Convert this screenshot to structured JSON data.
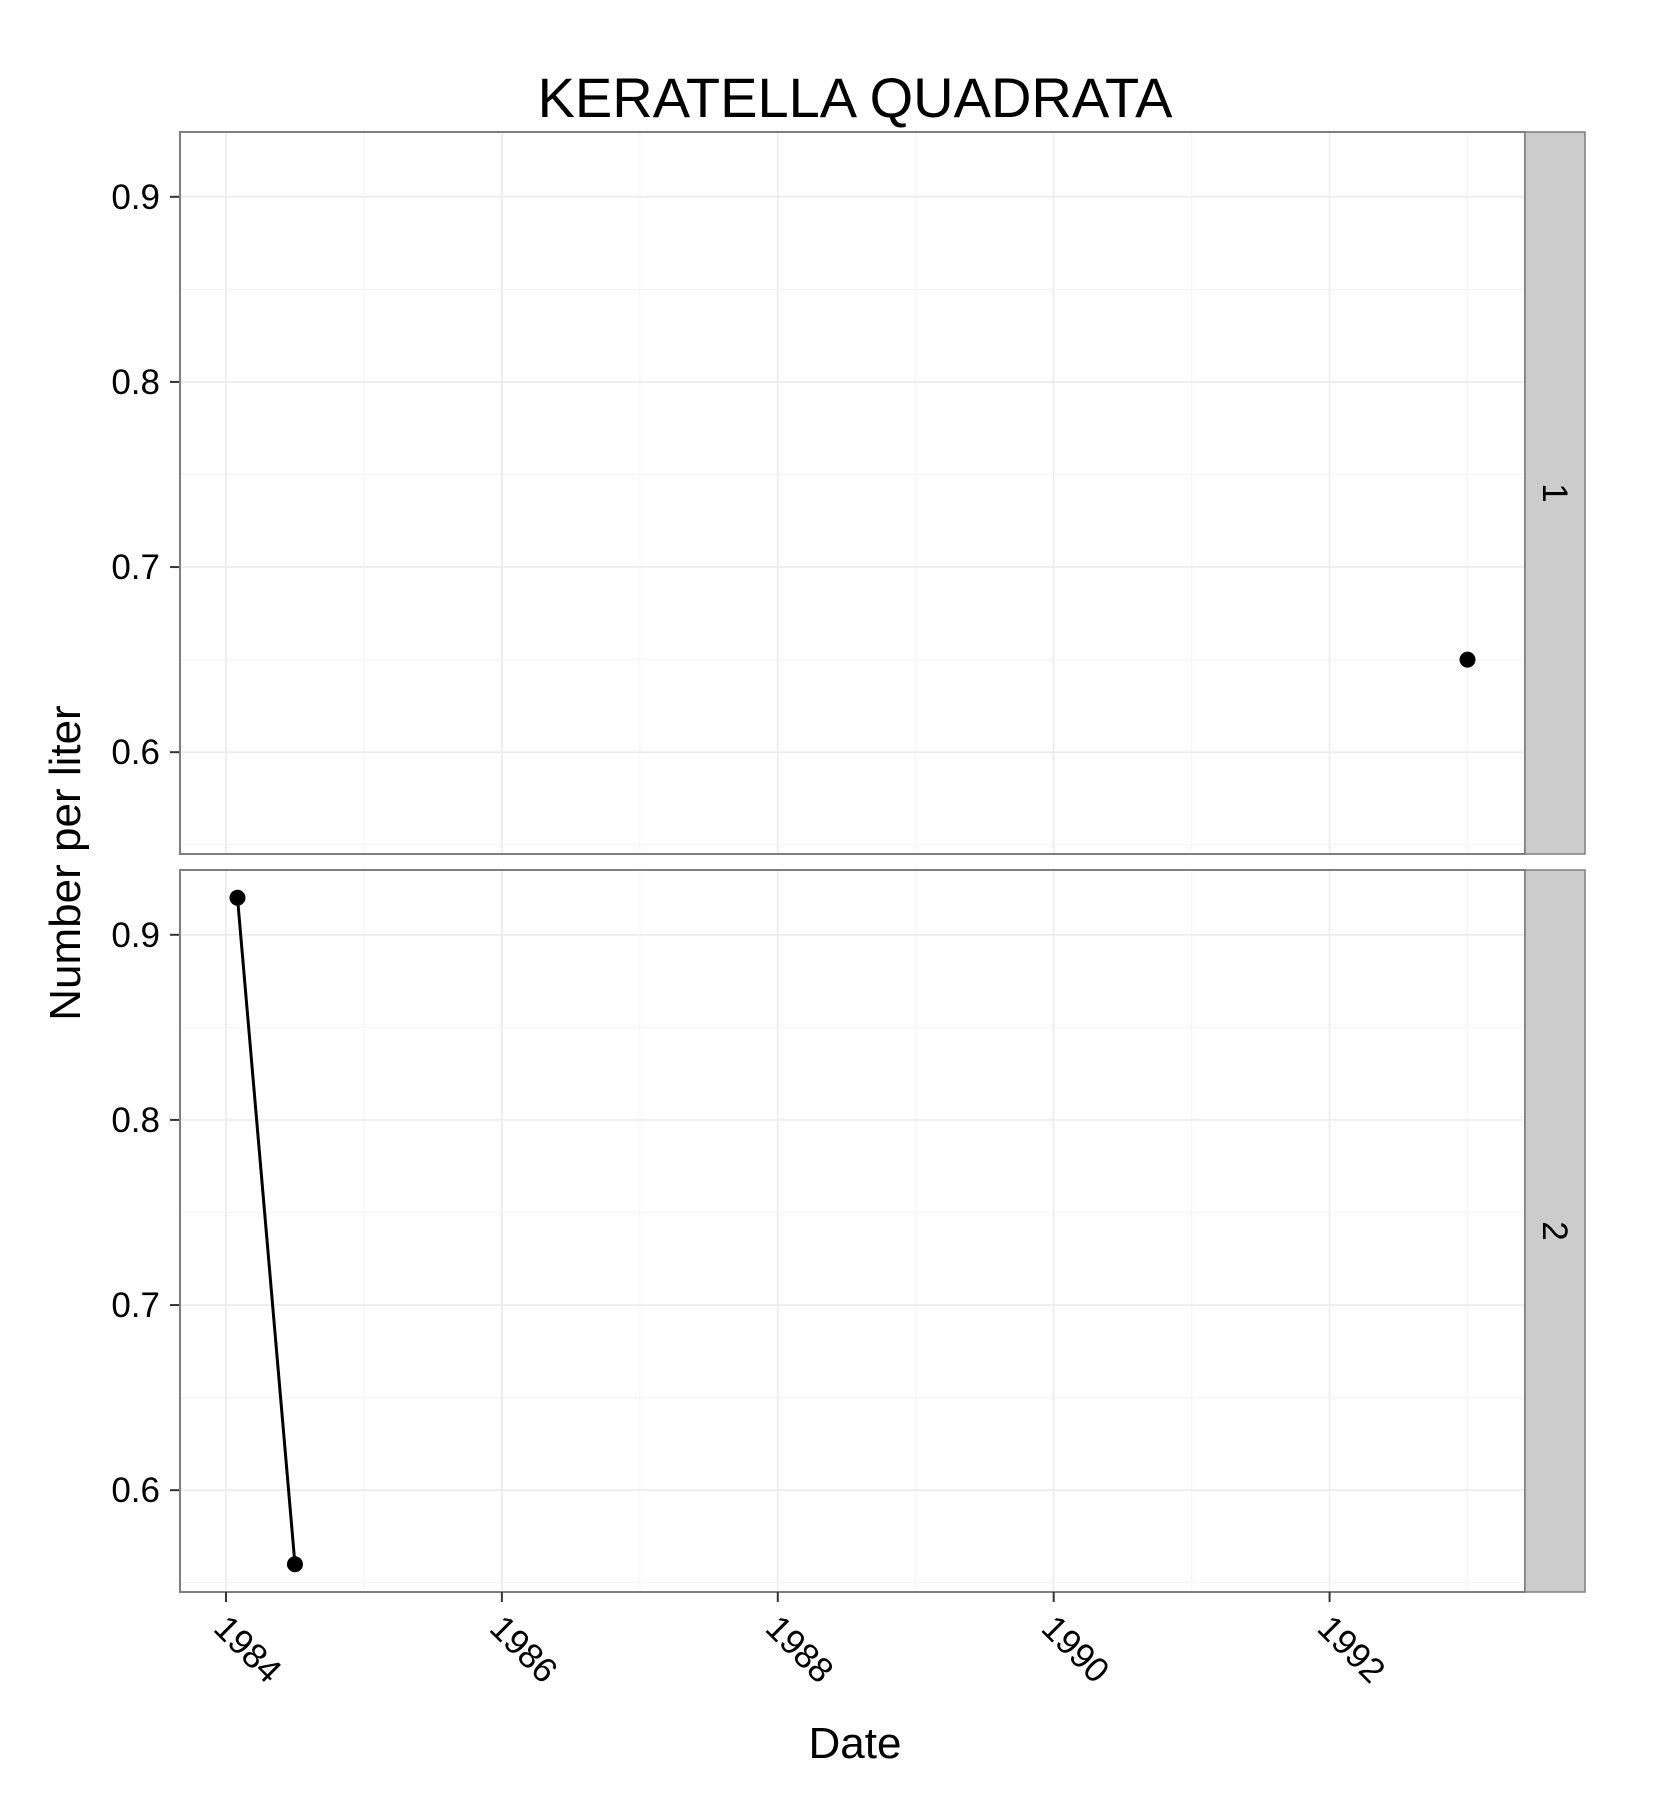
{
  "chart_data": {
    "type": "line",
    "title": "KERATELLA QUADRATA",
    "xlabel": "Date",
    "ylabel": "Number per liter",
    "x_ticks": [
      "1984",
      "1986",
      "1988",
      "1990",
      "1992"
    ],
    "y_ticks": [
      "0.6",
      "0.7",
      "0.8",
      "0.9"
    ],
    "xlim": [
      "1983-09",
      "1993-06"
    ],
    "ylim": [
      0.545,
      0.935
    ],
    "grid": true,
    "legend": "none",
    "facets": [
      {
        "label": "1",
        "points": [
          {
            "x": "1993-01",
            "y": 0.65
          }
        ]
      },
      {
        "label": "2",
        "points": [
          {
            "x": "1984-02",
            "y": 0.92
          },
          {
            "x": "1984-07",
            "y": 0.56
          }
        ]
      }
    ],
    "colors": {
      "line": "#000000",
      "point": "#000000",
      "panel_border": "#7f7f7f",
      "grid_major": "#ebebeb",
      "grid_minor": "#f5f5f5",
      "strip": "#cccccc"
    }
  }
}
